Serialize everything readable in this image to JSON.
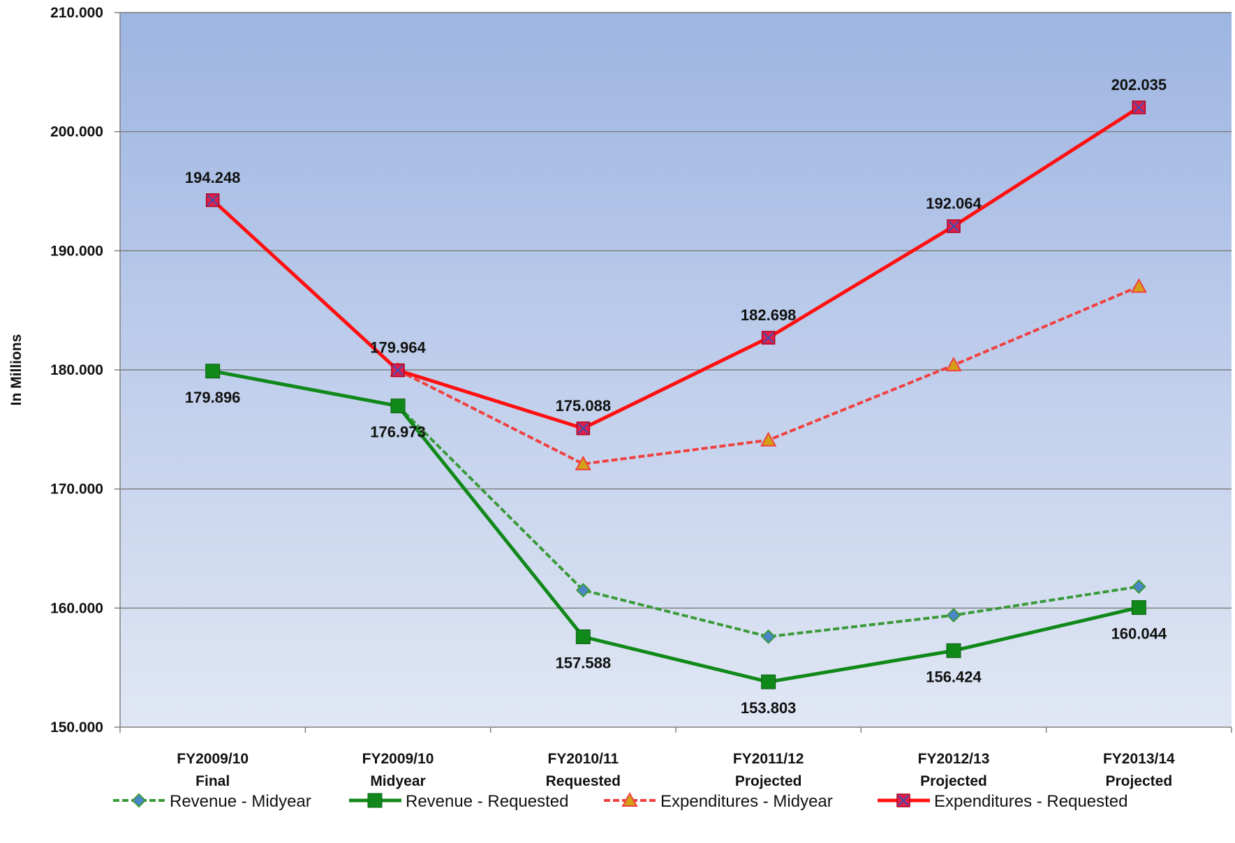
{
  "chart_data": {
    "type": "line",
    "title": "",
    "xlabel": "",
    "ylabel": "In Millions",
    "ylim": [
      150,
      210
    ],
    "ytick_labels": [
      "150.000",
      "160.000",
      "170.000",
      "180.000",
      "190.000",
      "200.000",
      "210.000"
    ],
    "ytick_values": [
      150,
      160,
      170,
      180,
      190,
      200,
      210
    ],
    "categories": [
      [
        "FY2009/10",
        "Final"
      ],
      [
        "FY2009/10",
        "Midyear"
      ],
      [
        "FY2010/11",
        "Requested"
      ],
      [
        "FY2011/12",
        "Projected"
      ],
      [
        "FY2012/13",
        "Projected"
      ],
      [
        "FY2013/14",
        "Projected"
      ]
    ],
    "grid": true,
    "legend_position": "bottom",
    "series": [
      {
        "name": "Revenue - Midyear",
        "values": [
          null,
          176.973,
          161.5,
          157.6,
          159.4,
          161.8
        ],
        "color": "#3a9a3a",
        "style": "dashed",
        "marker": "diamond",
        "marker_color": "#4a86c8",
        "labels": [
          null,
          null,
          null,
          null,
          null,
          null
        ]
      },
      {
        "name": "Revenue - Requested",
        "values": [
          179.896,
          176.973,
          157.588,
          153.803,
          156.424,
          160.044
        ],
        "color": "#11891a",
        "style": "solid",
        "marker": "square",
        "marker_color": "#11891a",
        "labels": [
          "179.896",
          "176.973",
          "157.588",
          "153.803",
          "156.424",
          "160.044"
        ]
      },
      {
        "name": "Expenditures - Midyear",
        "values": [
          null,
          179.964,
          172.1,
          174.1,
          180.4,
          187.0
        ],
        "color": "#f04040",
        "style": "dashed",
        "marker": "triangle",
        "marker_color": "#d4a017",
        "labels": [
          null,
          null,
          null,
          null,
          null,
          null
        ]
      },
      {
        "name": "Expenditures - Requested",
        "values": [
          194.248,
          179.964,
          175.088,
          182.698,
          192.064,
          202.035
        ],
        "color": "#ff1010",
        "style": "solid",
        "marker": "xsquare",
        "marker_color": "#e0204a",
        "labels": [
          "194.248",
          "179.964",
          "175.088",
          "182.698",
          "192.064",
          "202.035"
        ]
      }
    ]
  }
}
